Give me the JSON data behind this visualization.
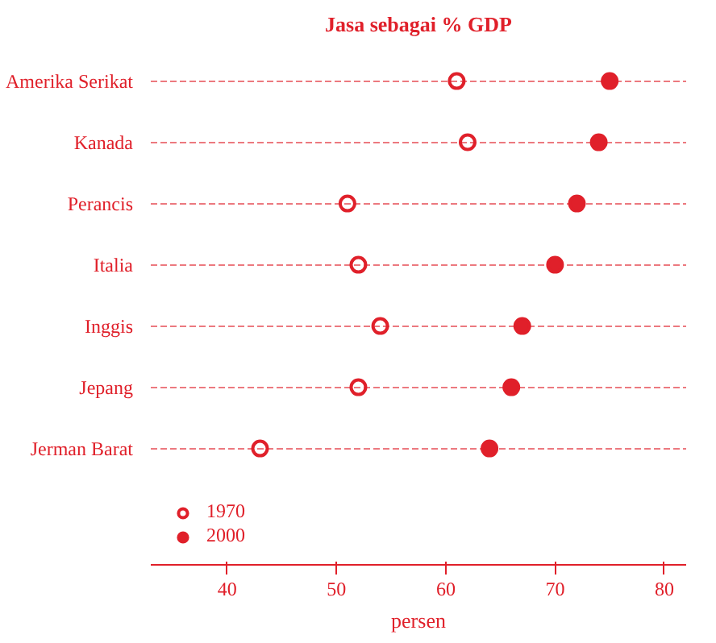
{
  "chart_data": {
    "type": "scatter",
    "title": "Jasa sebagai % GDP",
    "xlabel": "persen",
    "categories": [
      "Amerika Serikat",
      "Kanada",
      "Perancis",
      "Italia",
      "Inggis",
      "Jepang",
      "Jerman Barat"
    ],
    "series": [
      {
        "name": "1970",
        "color": "#e0202a",
        "values": [
          61,
          62,
          51,
          52,
          54,
          52,
          43
        ]
      },
      {
        "name": "2000",
        "color": "#e0202a",
        "values": [
          75,
          74,
          72,
          70,
          67,
          66,
          64
        ]
      }
    ],
    "xlim": [
      33,
      82
    ],
    "xticks": [
      40,
      50,
      60,
      70,
      80
    ],
    "orientation": "horizontal",
    "grid": "y",
    "marker": "circle",
    "legend": "bottom left",
    "line_style": "dashed"
  }
}
